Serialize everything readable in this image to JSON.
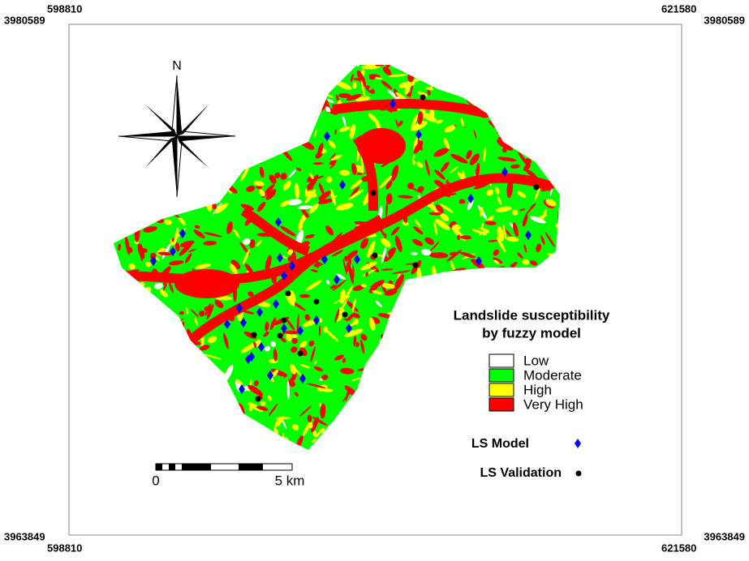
{
  "corners": {
    "top_left": {
      "x": 598810,
      "y": 3980589
    },
    "top_right": {
      "x": 621580,
      "y": 3980589
    },
    "bottom_left": {
      "x": 598810,
      "y": 3963849
    },
    "bottom_right": {
      "x": 621580,
      "y": 3963849
    }
  },
  "north": "N",
  "legend": {
    "title": [
      "Landslide susceptibility",
      "by fuzzy model"
    ],
    "classes": [
      {
        "label": "Low",
        "color": "#ffffff"
      },
      {
        "label": "Moderate",
        "color": "#00ff00"
      },
      {
        "label": "High",
        "color": "#ffff00"
      },
      {
        "label": "Very High",
        "color": "#ff0000"
      }
    ]
  },
  "points": [
    {
      "label": "LS Model",
      "color": "#0000ff"
    },
    {
      "label": "LS Validation",
      "color": "#000000"
    }
  ],
  "scale_bar": {
    "start": "0",
    "end": "5 km"
  }
}
